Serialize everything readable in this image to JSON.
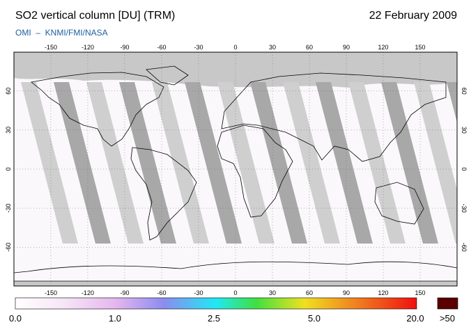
{
  "header": {
    "title": "SO2 vertical column [DU] (TRM)",
    "date": "22 February 2009",
    "subtitle": "OMI  –  KNMI/FMI/NASA"
  },
  "map": {
    "lon_ticks": [
      -150,
      -120,
      -90,
      -60,
      -30,
      0,
      30,
      60,
      90,
      120,
      150
    ],
    "lat_ticks": [
      60,
      30,
      0,
      -30,
      -60
    ]
  },
  "colorbar": {
    "labels": [
      "0.0",
      "1.0",
      "2.5",
      "5.0",
      "20.0"
    ],
    "overflow_label": ">50"
  }
}
